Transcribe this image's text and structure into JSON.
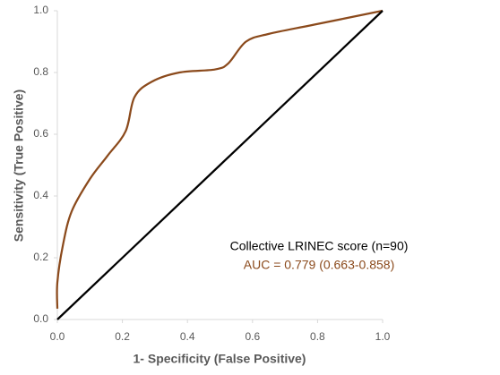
{
  "chart_data": {
    "type": "line",
    "x_label": "1- Specificity (False Positive)",
    "y_label": "Sensitivity (True Positive)",
    "annotations": [
      "Collective LRINEC score (n=90)",
      "AUC = 0.779 (0.663-0.858)"
    ],
    "series": [
      {
        "color": "#8b4a1c",
        "x": [
          0,
          0,
          0.017,
          0.044,
          0.1,
          0.154,
          0.21,
          0.237,
          0.29,
          0.375,
          0.485,
          0.526,
          0.58,
          0.65,
          0.79,
          1
        ],
        "values": [
          0.035,
          0.12,
          0.24,
          0.35,
          0.455,
          0.53,
          0.61,
          0.72,
          0.77,
          0.8,
          0.81,
          0.83,
          0.9,
          0.925,
          0.955,
          1
        ]
      },
      {
        "color": "#000000",
        "x": [
          0,
          1
        ],
        "values": [
          0,
          1
        ]
      }
    ],
    "xlim": [
      0,
      1
    ],
    "ylim": [
      0,
      1
    ],
    "xticks": [
      {
        "value": 0,
        "label": "0.0"
      },
      0.2,
      0.4,
      0.6,
      0.8,
      {
        "value": 1,
        "label": "1.0"
      }
    ],
    "yticks": [
      {
        "value": 0,
        "label": "0.0"
      },
      0.2,
      0.4,
      0.6,
      0.8,
      {
        "value": 1,
        "label": "1.0"
      }
    ],
    "grid": false
  }
}
